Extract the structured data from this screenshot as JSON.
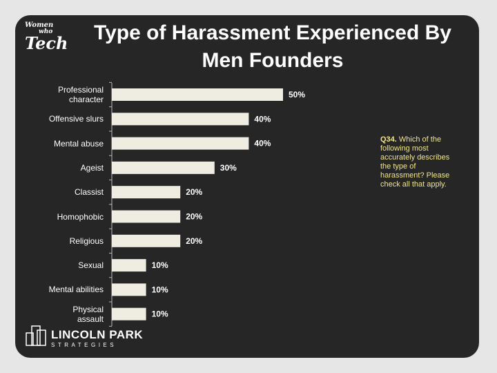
{
  "chart_data": {
    "type": "bar",
    "orientation": "horizontal",
    "title": "Type of Harassment Experienced By Men Founders",
    "categories": [
      "Professional character",
      "Offensive slurs",
      "Mental abuse",
      "Ageist",
      "Classist",
      "Homophobic",
      "Religious",
      "Sexual",
      "Mental abilities",
      "Physical assault"
    ],
    "values": [
      50,
      40,
      40,
      30,
      20,
      20,
      20,
      10,
      10,
      10
    ],
    "value_labels": [
      "50%",
      "40%",
      "40%",
      "30%",
      "20%",
      "20%",
      "20%",
      "10%",
      "10%",
      "10%"
    ],
    "color": "#efede1",
    "note_label": "Q34.",
    "note": "Which of the following most accurately describes the type of harassment? Please check all that apply.",
    "logo_top": [
      "Women",
      "who",
      "Tech"
    ],
    "logo_bottom": [
      "LINCOLN PARK",
      "STRATEGIES"
    ]
  }
}
